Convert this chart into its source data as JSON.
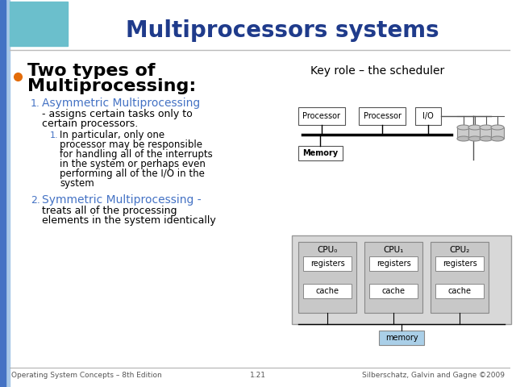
{
  "title": "Multiprocessors systems",
  "title_color": "#1F3B8B",
  "title_fontsize": 20,
  "bg_color": "#FFFFFF",
  "left_bar_color": "#4472C4",
  "dino_top_bg": "#6BBFCC",
  "bullet_color": "#E36C09",
  "text_color": "#000000",
  "blue_text_color": "#4472C4",
  "key_role_text": "Key role – the scheduler",
  "footer_left": "Operating System Concepts – 8th Edition",
  "footer_center": "1.21",
  "footer_right": "Silberschatz, Galvin and Gagne ©2009",
  "footer_fontsize": 6.5,
  "footer_color": "#555555",
  "memory_box_color": "#AACFE8",
  "diag_line_color": "#555555",
  "cylinder_color": "#CCCCCC",
  "cpu_outer_color": "#C8C8C8",
  "cpu_inner_color": "#DDDDDD",
  "white": "#FFFFFF"
}
